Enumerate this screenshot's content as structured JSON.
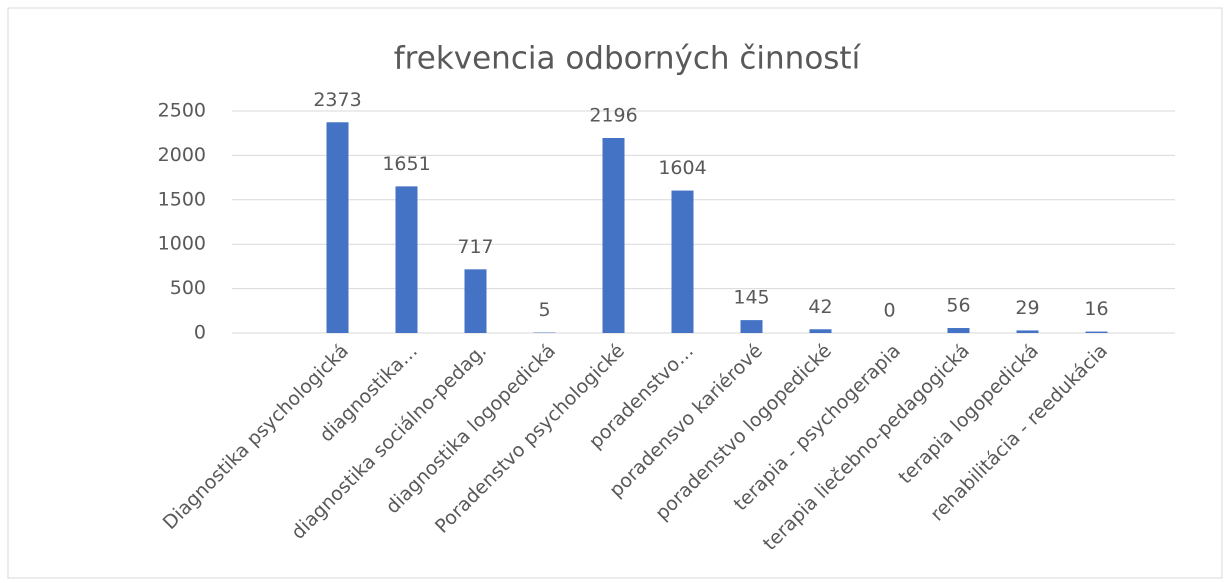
{
  "chart_data": {
    "type": "bar",
    "title": "frekvencia odborných činností",
    "categories": [
      "Diagnostika psychologická",
      "diagnostika…",
      "diagnostika sociálno-pedag.",
      "diagnostika logopedická",
      "Poradenstvo psychologické",
      "poradenstvo…",
      "poradensvo kariérové",
      "poradenstvo logopedické",
      "terapia  - psychogerapia",
      "terapia liečebno-pedagogická",
      "terapia logopedická",
      "rehabilitácia  - reedukácia"
    ],
    "values": [
      2373,
      1651,
      717,
      5,
      2196,
      1604,
      145,
      42,
      0,
      56,
      29,
      16
    ],
    "color": "#4472c4",
    "ylim": [
      0,
      2500
    ],
    "yticks": [
      0,
      500,
      1000,
      1500,
      2000,
      2500
    ],
    "grid": true
  }
}
